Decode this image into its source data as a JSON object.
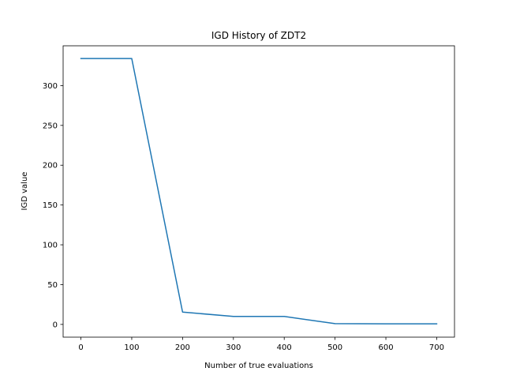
{
  "chart_data": {
    "type": "line",
    "title": "IGD History of ZDT2",
    "xlabel": "Number of true evaluations",
    "ylabel": "IGD value",
    "x": [
      0,
      100,
      200,
      300,
      400,
      500,
      600,
      700
    ],
    "series": [
      {
        "values": [
          334,
          334,
          15.5,
          10,
          10,
          1,
          0.7,
          0.7
        ],
        "color": "#1f77b4"
      }
    ],
    "xlim": [
      -35,
      735
    ],
    "ylim": [
      -16,
      350
    ],
    "xticks": [
      0,
      100,
      200,
      300,
      400,
      500,
      600,
      700
    ],
    "yticks": [
      0,
      50,
      100,
      150,
      200,
      250,
      300
    ],
    "grid": false,
    "legend": "none"
  }
}
